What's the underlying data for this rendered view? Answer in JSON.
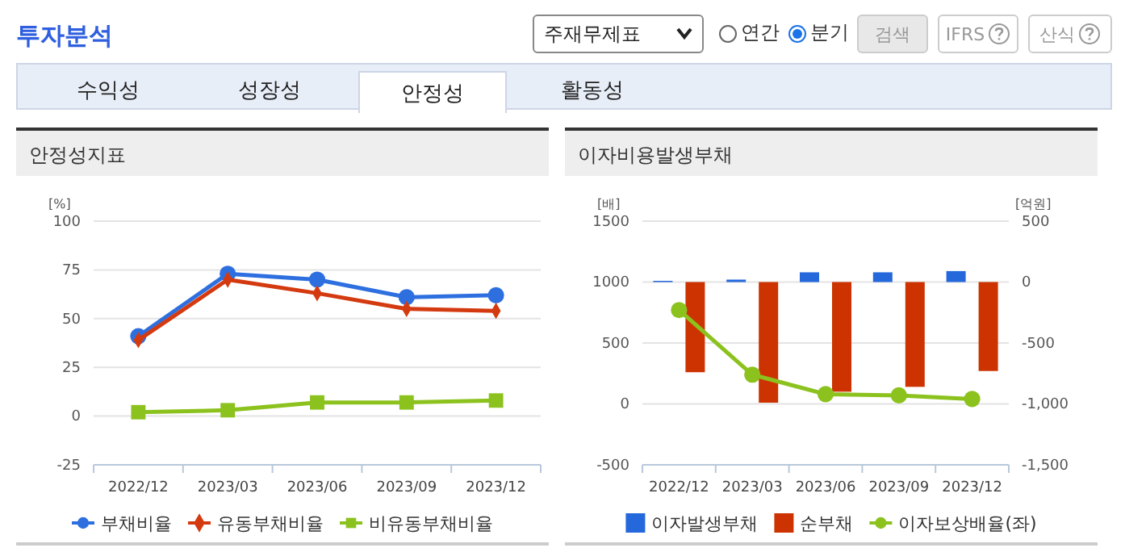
{
  "chart_data": [
    {
      "type": "other",
      "title": "투자분석",
      "annotations": [
        "주재무제표",
        "연간",
        "분기",
        "검색",
        "IFRS",
        "산식",
        "수익성",
        "성장성",
        "안정성",
        "활동성"
      ]
    },
    {
      "type": "line",
      "title": "안정성지표",
      "ylabel": "[%]",
      "categories": [
        "2022/12",
        "2023/03",
        "2023/06",
        "2023/09",
        "2023/12"
      ],
      "ylim": [
        -25,
        100
      ],
      "yticks": [
        -25,
        0,
        25,
        50,
        75,
        100
      ],
      "grid": "y",
      "legend": "bottom",
      "series": [
        {
          "name": "부채비율",
          "color": "#2e6fe0",
          "marker": "circle",
          "values": [
            41,
            73,
            70,
            61,
            62
          ]
        },
        {
          "name": "유동부채비율",
          "color": "#d43a10",
          "marker": "diamond",
          "values": [
            39,
            70,
            63,
            55,
            54
          ]
        },
        {
          "name": "비유동부채비율",
          "color": "#8cc21e",
          "marker": "square",
          "values": [
            2,
            3,
            7,
            7,
            8
          ]
        }
      ]
    },
    {
      "type": "bar",
      "title": "이자비용발생부채",
      "ylabel": "[배]",
      "y2label": "[억원]",
      "categories": [
        "2022/12",
        "2023/03",
        "2023/06",
        "2023/09",
        "2023/12"
      ],
      "ylim": [
        -500,
        1500
      ],
      "yticks": [
        -500,
        0,
        500,
        1000,
        1500
      ],
      "y2lim": [
        -1500,
        500
      ],
      "y2ticks": [
        {
          "value": -1500,
          "label": "-1,500"
        },
        {
          "value": -1000,
          "label": "-1,000"
        },
        -500,
        0,
        500
      ],
      "grid": "y",
      "legend": "bottom",
      "series": [
        {
          "name": "이자발생부채",
          "color": "#2468dc",
          "type": "bar",
          "axis": "y2",
          "values": [
            10,
            20,
            80,
            80,
            90
          ]
        },
        {
          "name": "순부채",
          "color": "#cc3300",
          "type": "bar",
          "axis": "y2",
          "values": [
            -740,
            -990,
            -900,
            -860,
            -730
          ]
        },
        {
          "name": "이자보상배율(좌)",
          "color": "#8cc21e",
          "type": "line",
          "axis": "y",
          "marker": "circle",
          "values": [
            770,
            240,
            80,
            70,
            40
          ]
        }
      ]
    }
  ]
}
